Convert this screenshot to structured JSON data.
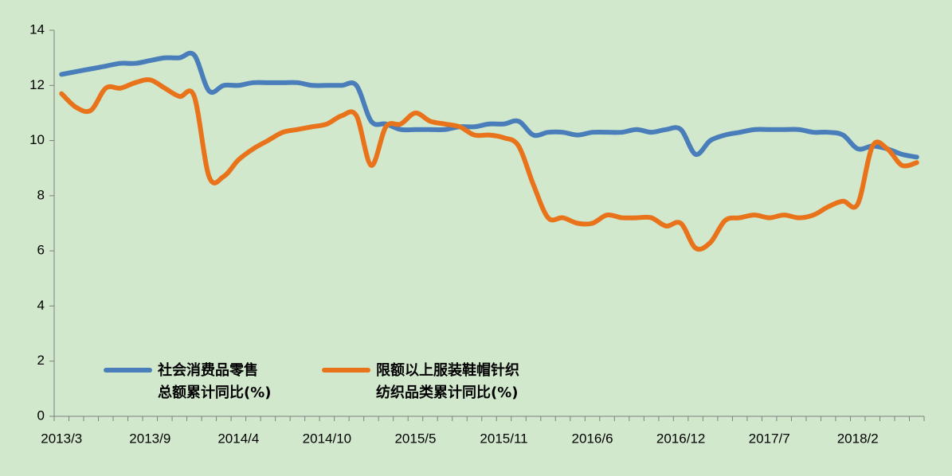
{
  "chart_data": {
    "type": "line",
    "categories": [
      "2013/3",
      null,
      null,
      null,
      null,
      null,
      "2013/9",
      null,
      null,
      null,
      null,
      null,
      "2014/4",
      null,
      null,
      null,
      null,
      null,
      "2014/10",
      null,
      null,
      null,
      null,
      null,
      "2015/5",
      null,
      null,
      null,
      null,
      null,
      "2015/11",
      null,
      null,
      null,
      null,
      null,
      "2016/6",
      null,
      null,
      null,
      null,
      null,
      "2016/12",
      null,
      null,
      null,
      null,
      null,
      "2017/7",
      null,
      null,
      null,
      null,
      null,
      "2018/2",
      null,
      null,
      null,
      null
    ],
    "series": [
      {
        "name": "社会消费品零售\n总额累计同比(%)",
        "color": "#4a7ebb",
        "values": [
          12.4,
          12.5,
          12.6,
          12.7,
          12.8,
          12.8,
          12.9,
          13.0,
          13.0,
          13.1,
          11.8,
          12.0,
          12.0,
          12.1,
          12.1,
          12.1,
          12.1,
          12.0,
          12.0,
          12.0,
          12.0,
          10.7,
          10.6,
          10.4,
          10.4,
          10.4,
          10.4,
          10.5,
          10.5,
          10.6,
          10.6,
          10.7,
          10.2,
          10.3,
          10.3,
          10.2,
          10.3,
          10.3,
          10.3,
          10.4,
          10.3,
          10.4,
          10.4,
          9.5,
          10.0,
          10.2,
          10.3,
          10.4,
          10.4,
          10.4,
          10.4,
          10.3,
          10.3,
          10.2,
          9.7,
          9.8,
          9.7,
          9.5,
          9.4
        ]
      },
      {
        "name": "限额以上服装鞋帽针织\n纺织品类累计同比(%)",
        "color": "#e8731a",
        "values": [
          11.7,
          11.2,
          11.1,
          11.9,
          11.9,
          12.1,
          12.2,
          11.9,
          11.6,
          11.6,
          8.7,
          8.7,
          9.3,
          9.7,
          10.0,
          10.3,
          10.4,
          10.5,
          10.6,
          10.9,
          10.9,
          9.1,
          10.5,
          10.6,
          11.0,
          10.7,
          10.6,
          10.5,
          10.2,
          10.2,
          10.1,
          9.8,
          8.4,
          7.2,
          7.2,
          7.0,
          7.0,
          7.3,
          7.2,
          7.2,
          7.2,
          6.9,
          7.0,
          6.1,
          6.3,
          7.1,
          7.2,
          7.3,
          7.2,
          7.3,
          7.2,
          7.3,
          7.6,
          7.8,
          7.7,
          9.8,
          9.7,
          9.1,
          9.2
        ]
      }
    ],
    "ylim": [
      0,
      14
    ],
    "yticks": [
      0,
      2,
      4,
      6,
      8,
      10,
      12,
      14
    ]
  }
}
